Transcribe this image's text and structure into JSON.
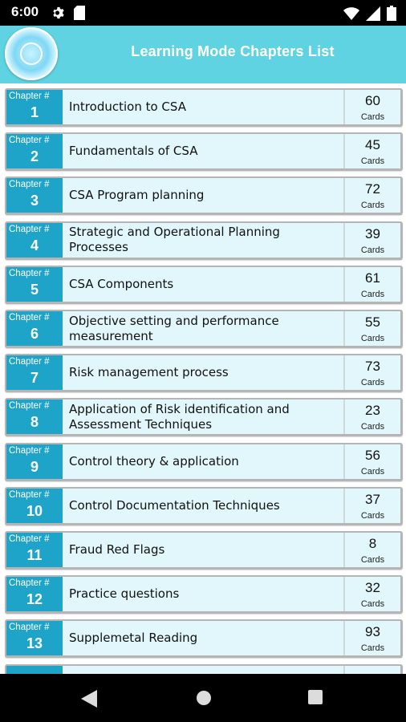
{
  "status_bar": {
    "time": "6:00",
    "left_icons": [
      "gear-icon",
      "sd-card-icon"
    ],
    "right_icons": [
      "wifi-icon",
      "signal-icon",
      "battery-icon"
    ]
  },
  "header": {
    "logo_icon": "app-logo-icon",
    "title": "Learning Mode Chapters List"
  },
  "colors": {
    "header_bg": "#5fd3e2",
    "badge_bg": "#1ea4c9",
    "row_bg": "#e2f7fb"
  },
  "chapter_label": "Chapter #",
  "cards_label": "Cards",
  "chapters": [
    {
      "number": "1",
      "title": "Introduction to CSA",
      "cards": "60"
    },
    {
      "number": "2",
      "title": "Fundamentals of CSA",
      "cards": "45"
    },
    {
      "number": "3",
      "title": "CSA Program planning",
      "cards": "72"
    },
    {
      "number": "4",
      "title": "Strategic and Operational Planning Processes",
      "cards": "39"
    },
    {
      "number": "5",
      "title": "CSA Components",
      "cards": "61"
    },
    {
      "number": "6",
      "title": "Objective setting and performance measurement",
      "cards": "55"
    },
    {
      "number": "7",
      "title": "Risk management process",
      "cards": "73"
    },
    {
      "number": "8",
      "title": "Application of Risk identification and Assessment Techniques",
      "cards": "23"
    },
    {
      "number": "9",
      "title": "Control theory & application",
      "cards": "56"
    },
    {
      "number": "10",
      "title": "Control Documentation Techniques",
      "cards": "37"
    },
    {
      "number": "11",
      "title": "Fraud Red Flags",
      "cards": "8"
    },
    {
      "number": "12",
      "title": "Practice questions",
      "cards": "32"
    },
    {
      "number": "13",
      "title": "Supplemetal Reading",
      "cards": "93"
    }
  ],
  "nav_bar": {
    "buttons": [
      "back-icon",
      "home-icon",
      "recents-icon"
    ]
  }
}
